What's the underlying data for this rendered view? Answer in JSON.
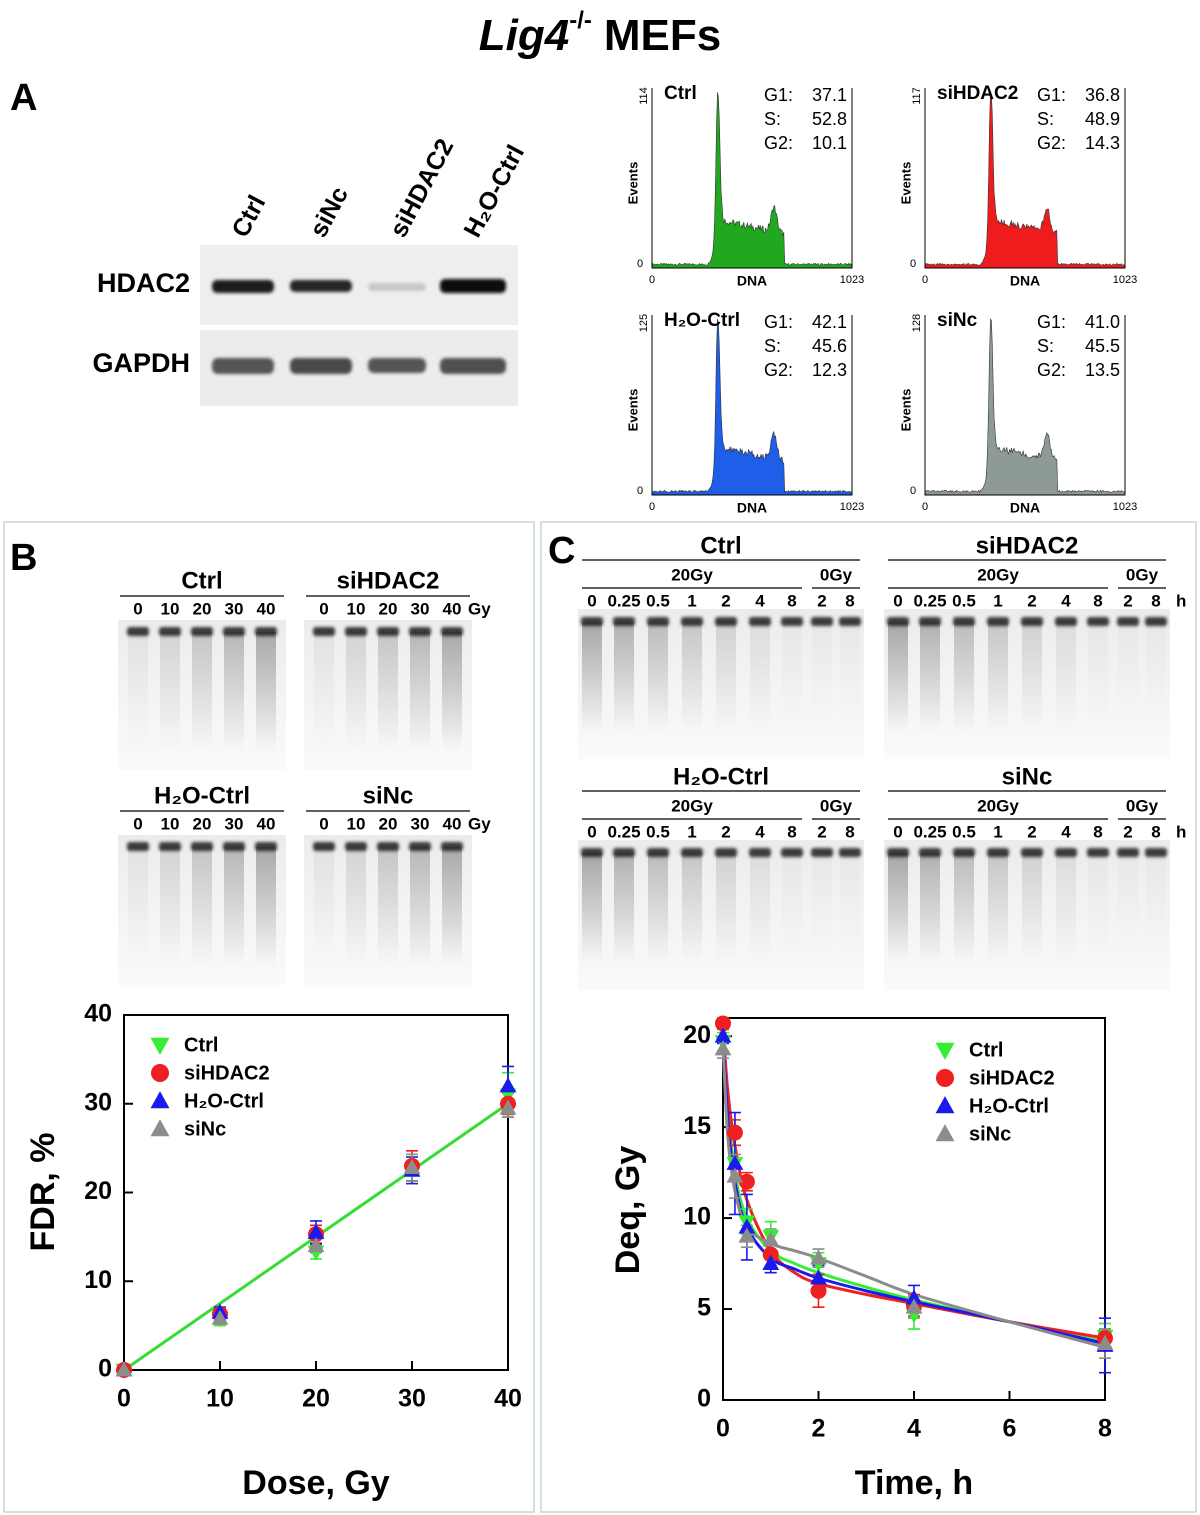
{
  "title": {
    "italic": "Lig4",
    "superscript": "-/-",
    "rest": "MEFs"
  },
  "panel_a": {
    "label": "A",
    "western": {
      "lanes": [
        "Ctrl",
        "siNc",
        "siHDAC2",
        "H₂O-Ctrl"
      ],
      "rows": [
        "HDAC2",
        "GAPDH"
      ]
    },
    "histograms": [
      {
        "name": "Ctrl",
        "color": "#22a81e",
        "xlabel": "DNA",
        "ylabel": "Events",
        "xticks": [
          0,
          1023
        ],
        "yticks": [
          0,
          114
        ],
        "stats": [
          {
            "label": "G1:",
            "value": 37.1
          },
          {
            "label": "S:",
            "value": 52.8
          },
          {
            "label": "G2:",
            "value": 10.1
          }
        ]
      },
      {
        "name": "siHDAC2",
        "color": "#ee1c1c",
        "xlabel": "DNA",
        "ylabel": "Events",
        "xticks": [
          0,
          1023
        ],
        "yticks": [
          0,
          117
        ],
        "stats": [
          {
            "label": "G1:",
            "value": 36.8
          },
          {
            "label": "S:",
            "value": 48.9
          },
          {
            "label": "G2:",
            "value": 14.3
          }
        ]
      },
      {
        "name": "H₂O-Ctrl",
        "color": "#1f5ee8",
        "xlabel": "DNA",
        "ylabel": "Events",
        "xticks": [
          0,
          1023
        ],
        "yticks": [
          0,
          125
        ],
        "stats": [
          {
            "label": "G1:",
            "value": 42.1
          },
          {
            "label": "S:",
            "value": 45.6
          },
          {
            "label": "G2:",
            "value": 12.3
          }
        ]
      },
      {
        "name": "siNc",
        "color": "#8e9a96",
        "xlabel": "DNA",
        "ylabel": "Events",
        "xticks": [
          0,
          1023
        ],
        "yticks": [
          0,
          128
        ],
        "stats": [
          {
            "label": "G1:",
            "value": {
              "value": 41.0,
              "label": "41.0"
            }
          },
          {
            "label": "S:",
            "value": 45.5
          },
          {
            "label": "G2:",
            "value": 13.5
          }
        ]
      }
    ]
  },
  "panel_b": {
    "label": "B",
    "unit": "Gy",
    "gels": [
      {
        "name": "Ctrl",
        "lanes": [
          0,
          10,
          20,
          30,
          40
        ]
      },
      {
        "name": "siHDAC2",
        "lanes": [
          0,
          10,
          20,
          30,
          40
        ]
      },
      {
        "name": "H₂O-Ctrl",
        "lanes": [
          0,
          10,
          20,
          30,
          40
        ]
      },
      {
        "name": "siNc",
        "lanes": [
          0,
          10,
          20,
          30,
          40
        ]
      }
    ]
  },
  "panel_c": {
    "label": "C",
    "unit": "h",
    "gels": [
      {
        "name": "Ctrl",
        "groups": [
          {
            "name": "20Gy",
            "lanes": [
              0,
              0.25,
              0.5,
              1,
              2,
              4,
              8
            ]
          },
          {
            "name": "0Gy",
            "lanes": [
              2,
              8
            ]
          }
        ]
      },
      {
        "name": "siHDAC2",
        "groups": [
          {
            "name": "20Gy",
            "lanes": [
              0,
              0.25,
              0.5,
              1,
              2,
              4,
              8
            ]
          },
          {
            "name": "0Gy",
            "lanes": [
              2,
              8
            ]
          }
        ]
      },
      {
        "name": "H₂O-Ctrl",
        "groups": [
          {
            "name": "20Gy",
            "lanes": [
              0,
              0.25,
              0.5,
              1,
              2,
              4,
              8
            ]
          },
          {
            "name": "0Gy",
            "lanes": [
              2,
              8
            ]
          }
        ]
      },
      {
        "name": "siNc",
        "groups": [
          {
            "name": "20Gy",
            "lanes": [
              0,
              0.25,
              0.5,
              1,
              2,
              4,
              8
            ]
          },
          {
            "name": "0Gy",
            "lanes": [
              2,
              8
            ]
          }
        ]
      }
    ]
  },
  "chart_data": [
    {
      "type": "scatter",
      "xlabel": "Dose, Gy",
      "ylabel": "FDR, %",
      "xlim": [
        0,
        40
      ],
      "ylim": [
        0,
        40
      ],
      "xticks": [
        0,
        10,
        20,
        30,
        40
      ],
      "yticks": [
        0,
        10,
        20,
        30,
        40
      ],
      "legend": "upper left",
      "x": [
        0,
        10,
        20,
        30,
        40
      ],
      "series": [
        {
          "name": "Ctrl",
          "color": "#33ee33",
          "marker": "triangle-down",
          "values": [
            0,
            5.8,
            13.3,
            22.5,
            31
          ],
          "errors": [
            0.3,
            0.8,
            0.8,
            1.5,
            2.5
          ]
        },
        {
          "name": "siHDAC2",
          "color": "#ee2020",
          "marker": "circle",
          "values": [
            0,
            6.3,
            15.3,
            23,
            30
          ],
          "errors": [
            0.3,
            0.6,
            1,
            1.7,
            1.2
          ]
        },
        {
          "name": "H₂O-Ctrl",
          "color": "#1a1aee",
          "marker": "triangle",
          "values": [
            0,
            6.5,
            15.5,
            22.5,
            32
          ],
          "errors": [
            0.3,
            0.6,
            1.3,
            1.5,
            2.2
          ]
        },
        {
          "name": "siNc",
          "color": "#8c8c8c",
          "marker": "triangle",
          "values": [
            0,
            5.8,
            14,
            22.8,
            29.5
          ],
          "errors": [
            0.3,
            0.5,
            0.8,
            1.5,
            1
          ]
        }
      ],
      "fit": {
        "color": "#33dd33",
        "x": [
          0,
          40
        ],
        "values": [
          0,
          30
        ]
      }
    },
    {
      "type": "scatter",
      "xlabel": "Time, h",
      "ylabel": "Deq, Gy",
      "xlim": [
        0,
        8
      ],
      "ylim": [
        0,
        21
      ],
      "xticks": [
        0,
        2,
        4,
        6,
        8
      ],
      "yticks": [
        0,
        5,
        10,
        15,
        20
      ],
      "legend": "upper right",
      "x": [
        0,
        0.25,
        0.5,
        1,
        2,
        4,
        8
      ],
      "fit_x": [
        0,
        0.1,
        0.25,
        0.5,
        1,
        1.5,
        2,
        3,
        4,
        6,
        8
      ],
      "series": [
        {
          "name": "Ctrl",
          "color": "#33ee33",
          "marker": "triangle-down",
          "values": [
            19.7,
            13,
            9.8,
            9,
            7.5,
            4.7,
            3.5
          ],
          "errors": [
            0.5,
            1,
            0.7,
            0.8,
            0.6,
            0.8,
            0.7
          ],
          "fit_values": [
            20,
            16,
            12.5,
            10,
            8.2,
            7.5,
            7,
            6.2,
            5.5,
            4.3,
            3.2
          ]
        },
        {
          "name": "siHDAC2",
          "color": "#ee2020",
          "marker": "circle",
          "values": [
            20.7,
            14.7,
            12,
            8,
            6,
            5.2,
            3.4
          ],
          "errors": [
            0.3,
            0.7,
            0.5,
            0.6,
            0.9,
            0.6,
            0.5
          ],
          "fit_values": [
            20.5,
            17,
            14,
            11,
            8.2,
            7,
            6.4,
            5.8,
            5.3,
            4.3,
            3.4
          ]
        },
        {
          "name": "H₂O-Ctrl",
          "color": "#1a1aee",
          "marker": "triangle",
          "values": [
            20,
            13,
            9.5,
            7.5,
            6.7,
            5.6,
            3
          ],
          "errors": [
            0.4,
            2.8,
            1.8,
            0.5,
            0.7,
            0.7,
            1.5
          ],
          "fit_values": [
            20,
            15.5,
            12,
            9.5,
            7.8,
            7.2,
            6.7,
            6,
            5.4,
            4.3,
            3.1
          ]
        },
        {
          "name": "siNc",
          "color": "#8c8c8c",
          "marker": "triangle",
          "values": [
            19.3,
            12.3,
            9,
            8.8,
            7.8,
            5.1,
            3.1
          ],
          "errors": [
            0.5,
            1.2,
            0.6,
            0.6,
            0.5,
            0.6,
            0.8
          ],
          "fit_values": [
            19.5,
            14.5,
            11.5,
            9.5,
            8.6,
            8.2,
            7.8,
            6.8,
            5.8,
            4.3,
            2.9
          ]
        }
      ]
    }
  ]
}
